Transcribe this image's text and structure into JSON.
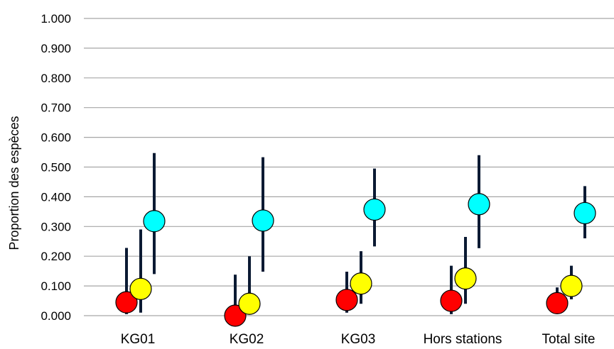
{
  "chart_data": {
    "type": "scatter",
    "ylabel": "Proportion des espèces",
    "xlabel": "",
    "ylim": [
      0,
      1
    ],
    "ytick_step": 0.1,
    "ytick_labels": [
      "0.000",
      "0.100",
      "0.200",
      "0.300",
      "0.400",
      "0.500",
      "0.600",
      "0.700",
      "0.800",
      "0.900",
      "1.000"
    ],
    "grid": true,
    "categories": [
      "KG01",
      "KG02",
      "KG03",
      "Hors stations",
      "Total site"
    ],
    "series": [
      {
        "color": "#ff0000",
        "values": [
          0.045,
          0.0,
          0.053,
          0.05,
          0.042
        ],
        "lower": [
          0.005,
          0.0,
          0.01,
          0.005,
          0.01
        ],
        "upper": [
          0.228,
          0.138,
          0.148,
          0.168,
          0.095
        ]
      },
      {
        "color": "#ffff00",
        "values": [
          0.09,
          0.04,
          0.108,
          0.125,
          0.1
        ],
        "lower": [
          0.01,
          0.005,
          0.04,
          0.04,
          0.055
        ],
        "upper": [
          0.29,
          0.2,
          0.217,
          0.265,
          0.168
        ]
      },
      {
        "color": "#00ffff",
        "values": [
          0.318,
          0.32,
          0.357,
          0.375,
          0.345
        ],
        "lower": [
          0.14,
          0.148,
          0.233,
          0.227,
          0.26
        ],
        "upper": [
          0.547,
          0.533,
          0.495,
          0.54,
          0.436
        ]
      }
    ]
  }
}
